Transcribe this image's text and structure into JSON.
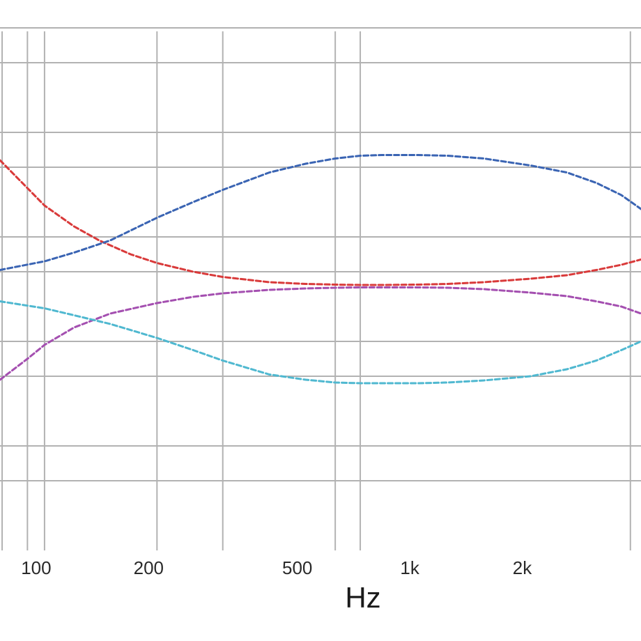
{
  "chart_data": {
    "type": "line",
    "xlabel": "Hz",
    "ylabel": "",
    "x_scale": "log",
    "xlim": [
      76,
      3950
    ],
    "ylim": [
      0,
      15
    ],
    "grid": true,
    "x_ticks": [
      {
        "value": 100,
        "label": "100"
      },
      {
        "value": 200,
        "label": "200"
      },
      {
        "value": 500,
        "label": "500"
      },
      {
        "value": 1000,
        "label": "1k"
      },
      {
        "value": 2000,
        "label": "2k"
      }
    ],
    "x_gridlines": [
      77,
      90,
      100,
      200,
      300,
      600,
      700,
      3700
    ],
    "y_gridlines": [
      2,
      3,
      5,
      6,
      8,
      9,
      11,
      12,
      14,
      15
    ],
    "series": [
      {
        "color": "#d93a3a",
        "x": [
          76,
          90,
          100,
          120,
          140,
          170,
          200,
          250,
          300,
          400,
          500,
          600,
          700,
          800,
          1000,
          1200,
          1500,
          2000,
          2500,
          3000,
          3500,
          3950
        ],
        "y": [
          11.2,
          10.4,
          9.9,
          9.3,
          8.9,
          8.5,
          8.25,
          8.0,
          7.85,
          7.7,
          7.65,
          7.63,
          7.62,
          7.62,
          7.63,
          7.65,
          7.7,
          7.8,
          7.9,
          8.05,
          8.2,
          8.35
        ]
      },
      {
        "color": "#3a64b3",
        "x": [
          76,
          100,
          120,
          150,
          200,
          250,
          300,
          400,
          500,
          600,
          700,
          800,
          1000,
          1200,
          1500,
          2000,
          2500,
          3000,
          3500,
          3950
        ],
        "y": [
          8.05,
          8.3,
          8.55,
          8.9,
          9.55,
          10.0,
          10.35,
          10.85,
          11.1,
          11.25,
          11.33,
          11.35,
          11.35,
          11.33,
          11.25,
          11.05,
          10.85,
          10.55,
          10.2,
          9.8
        ]
      },
      {
        "color": "#a44fb0",
        "x": [
          76,
          90,
          100,
          120,
          150,
          200,
          250,
          300,
          400,
          500,
          600,
          700,
          800,
          1000,
          1200,
          1500,
          2000,
          2500,
          3000,
          3500,
          3950
        ],
        "y": [
          4.9,
          5.5,
          5.9,
          6.4,
          6.8,
          7.1,
          7.28,
          7.38,
          7.48,
          7.52,
          7.54,
          7.55,
          7.55,
          7.55,
          7.54,
          7.5,
          7.4,
          7.3,
          7.15,
          7.0,
          6.8
        ]
      },
      {
        "color": "#4fb8d0",
        "x": [
          76,
          100,
          120,
          150,
          200,
          250,
          300,
          400,
          500,
          600,
          700,
          800,
          1000,
          1200,
          1500,
          2000,
          2500,
          3000,
          3500,
          3950
        ],
        "y": [
          7.15,
          6.95,
          6.75,
          6.5,
          6.1,
          5.75,
          5.45,
          5.05,
          4.9,
          4.82,
          4.8,
          4.8,
          4.8,
          4.82,
          4.88,
          5.0,
          5.2,
          5.45,
          5.75,
          6.0
        ]
      }
    ]
  }
}
